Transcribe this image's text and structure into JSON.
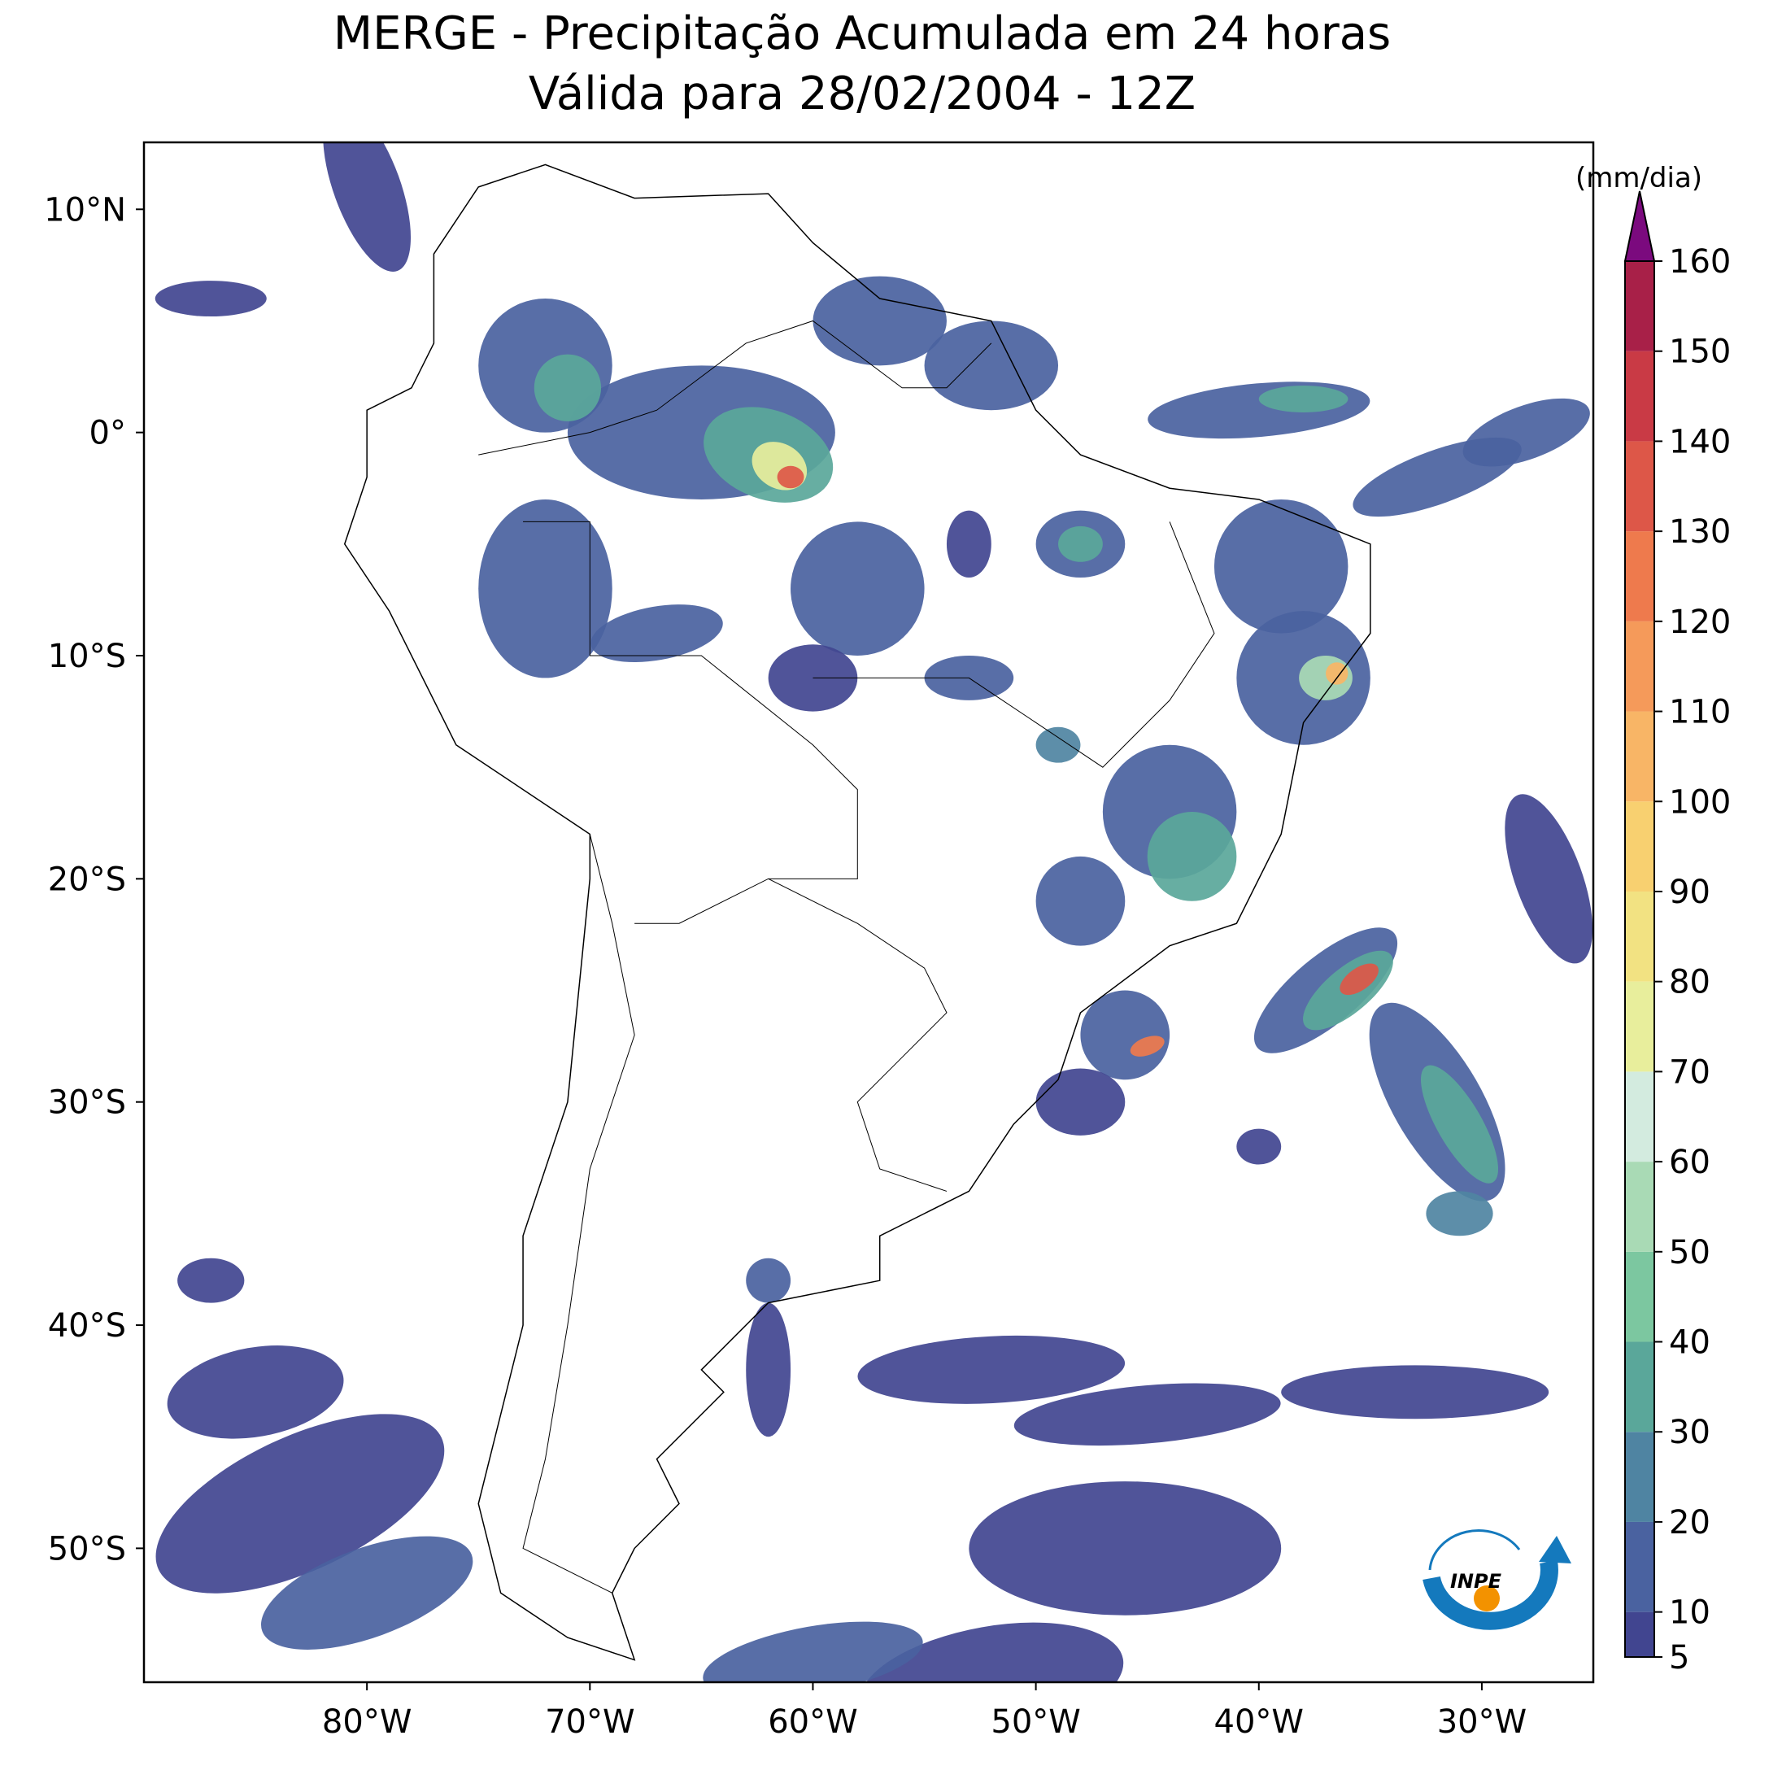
{
  "title": [
    "MERGE - Precipitação Acumulada em 24 horas",
    "Válida para 28/02/2004 - 12Z"
  ],
  "map": {
    "xlim": [
      -90,
      -25
    ],
    "ylim": [
      -56,
      13
    ],
    "xticks": [
      {
        "value": -80,
        "label": "80°W"
      },
      {
        "value": -70,
        "label": "70°W"
      },
      {
        "value": -60,
        "label": "60°W"
      },
      {
        "value": -50,
        "label": "50°W"
      },
      {
        "value": -40,
        "label": "40°W"
      },
      {
        "value": -30,
        "label": "30°W"
      }
    ],
    "yticks": [
      {
        "value": 10,
        "label": "10°N"
      },
      {
        "value": 0,
        "label": "0°"
      },
      {
        "value": -10,
        "label": "10°S"
      },
      {
        "value": -20,
        "label": "20°S"
      },
      {
        "value": -30,
        "label": "30°S"
      },
      {
        "value": -40,
        "label": "40°S"
      },
      {
        "value": -50,
        "label": "50°S"
      }
    ]
  },
  "colorbar": {
    "label": "(mm/dia)",
    "lim": [
      5,
      160
    ],
    "ticks": [
      5,
      10,
      20,
      30,
      40,
      50,
      60,
      70,
      80,
      90,
      100,
      110,
      120,
      130,
      140,
      150,
      160
    ],
    "colors": [
      "#414590",
      "#4a62a0",
      "#4f84a2",
      "#5aa79a",
      "#7cc7a0",
      "#a9dab5",
      "#d3ebdf",
      "#e8ee9c",
      "#f2e282",
      "#f8d070",
      "#f8b566",
      "#f59a5a",
      "#ee7a4d",
      "#dd5748",
      "#c93a45",
      "#a82048"
    ],
    "extend_color": "#7b0a7e"
  },
  "logo": "INPE"
}
